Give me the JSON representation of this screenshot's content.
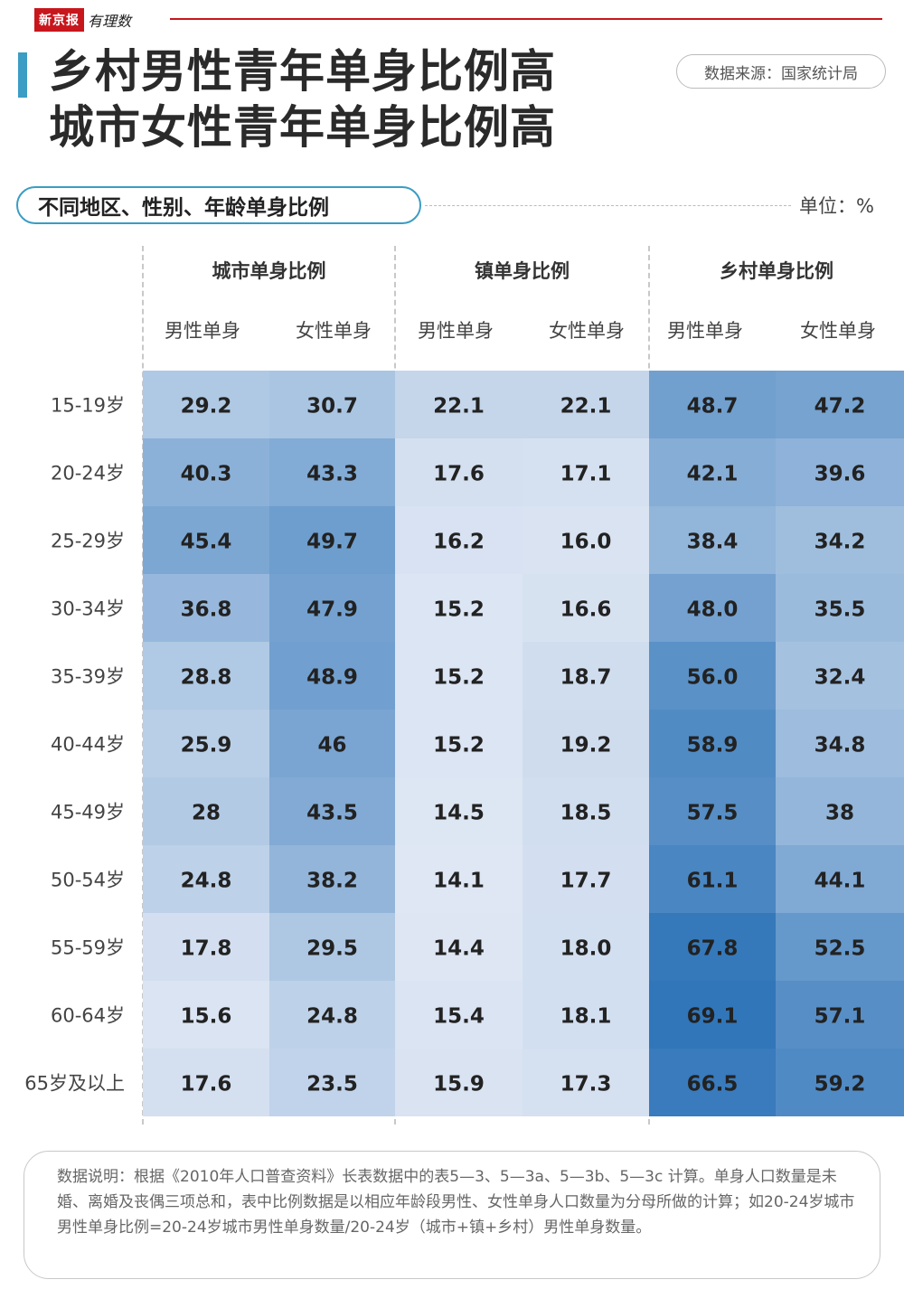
{
  "brand": {
    "name": "新京报",
    "sub": "有理数"
  },
  "header": {
    "title_line1": "乡村男性青年单身比例高",
    "title_line2": "城市女性青年单身比例高",
    "source": "数据来源：国家统计局"
  },
  "subtitle": "不同地区、性别、年龄单身比例",
  "unit": "单位：%",
  "colors": {
    "accent": "#3b9cc4",
    "brand_red": "#c8161d",
    "cell_light": "#dfe7f4",
    "cell_dark": "#2e74b8"
  },
  "chart_data": {
    "type": "heatmap",
    "title": "不同地区、性别、年龄单身比例",
    "unit": "%",
    "groups": [
      {
        "name": "城市单身比例",
        "columns": [
          "男性单身",
          "女性单身"
        ]
      },
      {
        "name": "镇单身比例",
        "columns": [
          "男性单身",
          "女性单身"
        ]
      },
      {
        "name": "乡村单身比例",
        "columns": [
          "男性单身",
          "女性单身"
        ]
      }
    ],
    "rows": [
      "15-19岁",
      "20-24岁",
      "25-29岁",
      "30-34岁",
      "35-39岁",
      "40-44岁",
      "45-49岁",
      "50-54岁",
      "55-59岁",
      "60-64岁",
      "65岁及以上"
    ],
    "values": [
      [
        "29.2",
        "30.7",
        "22.1",
        "22.1",
        "48.7",
        "47.2"
      ],
      [
        "40.3",
        "43.3",
        "17.6",
        "17.1",
        "42.1",
        "39.6"
      ],
      [
        "45.4",
        "49.7",
        "16.2",
        "16.0",
        "38.4",
        "34.2"
      ],
      [
        "36.8",
        "47.9",
        "15.2",
        "16.6",
        "48.0",
        "35.5"
      ],
      [
        "28.8",
        "48.9",
        "15.2",
        "18.7",
        "56.0",
        "32.4"
      ],
      [
        "25.9",
        "46",
        "15.2",
        "19.2",
        "58.9",
        "34.8"
      ],
      [
        "28",
        "43.5",
        "14.5",
        "18.5",
        "57.5",
        "38"
      ],
      [
        "24.8",
        "38.2",
        "14.1",
        "17.7",
        "61.1",
        "44.1"
      ],
      [
        "17.8",
        "29.5",
        "14.4",
        "18.0",
        "67.8",
        "52.5"
      ],
      [
        "15.6",
        "24.8",
        "15.4",
        "18.1",
        "69.1",
        "57.1"
      ],
      [
        "17.6",
        "23.5",
        "15.9",
        "17.3",
        "66.5",
        "59.2"
      ]
    ]
  },
  "note": "数据说明：根据《2010年人口普查资料》长表数据中的表5—3、5—3a、5—3b、5—3c 计算。单身人口数量是未婚、离婚及丧偶三项总和，表中比例数据是以相应年龄段男性、女性单身人口数量为分母所做的计算；如20-24岁城市男性单身比例=20-24岁城市男性单身数量/20-24岁（城市+镇+乡村）男性单身数量。"
}
